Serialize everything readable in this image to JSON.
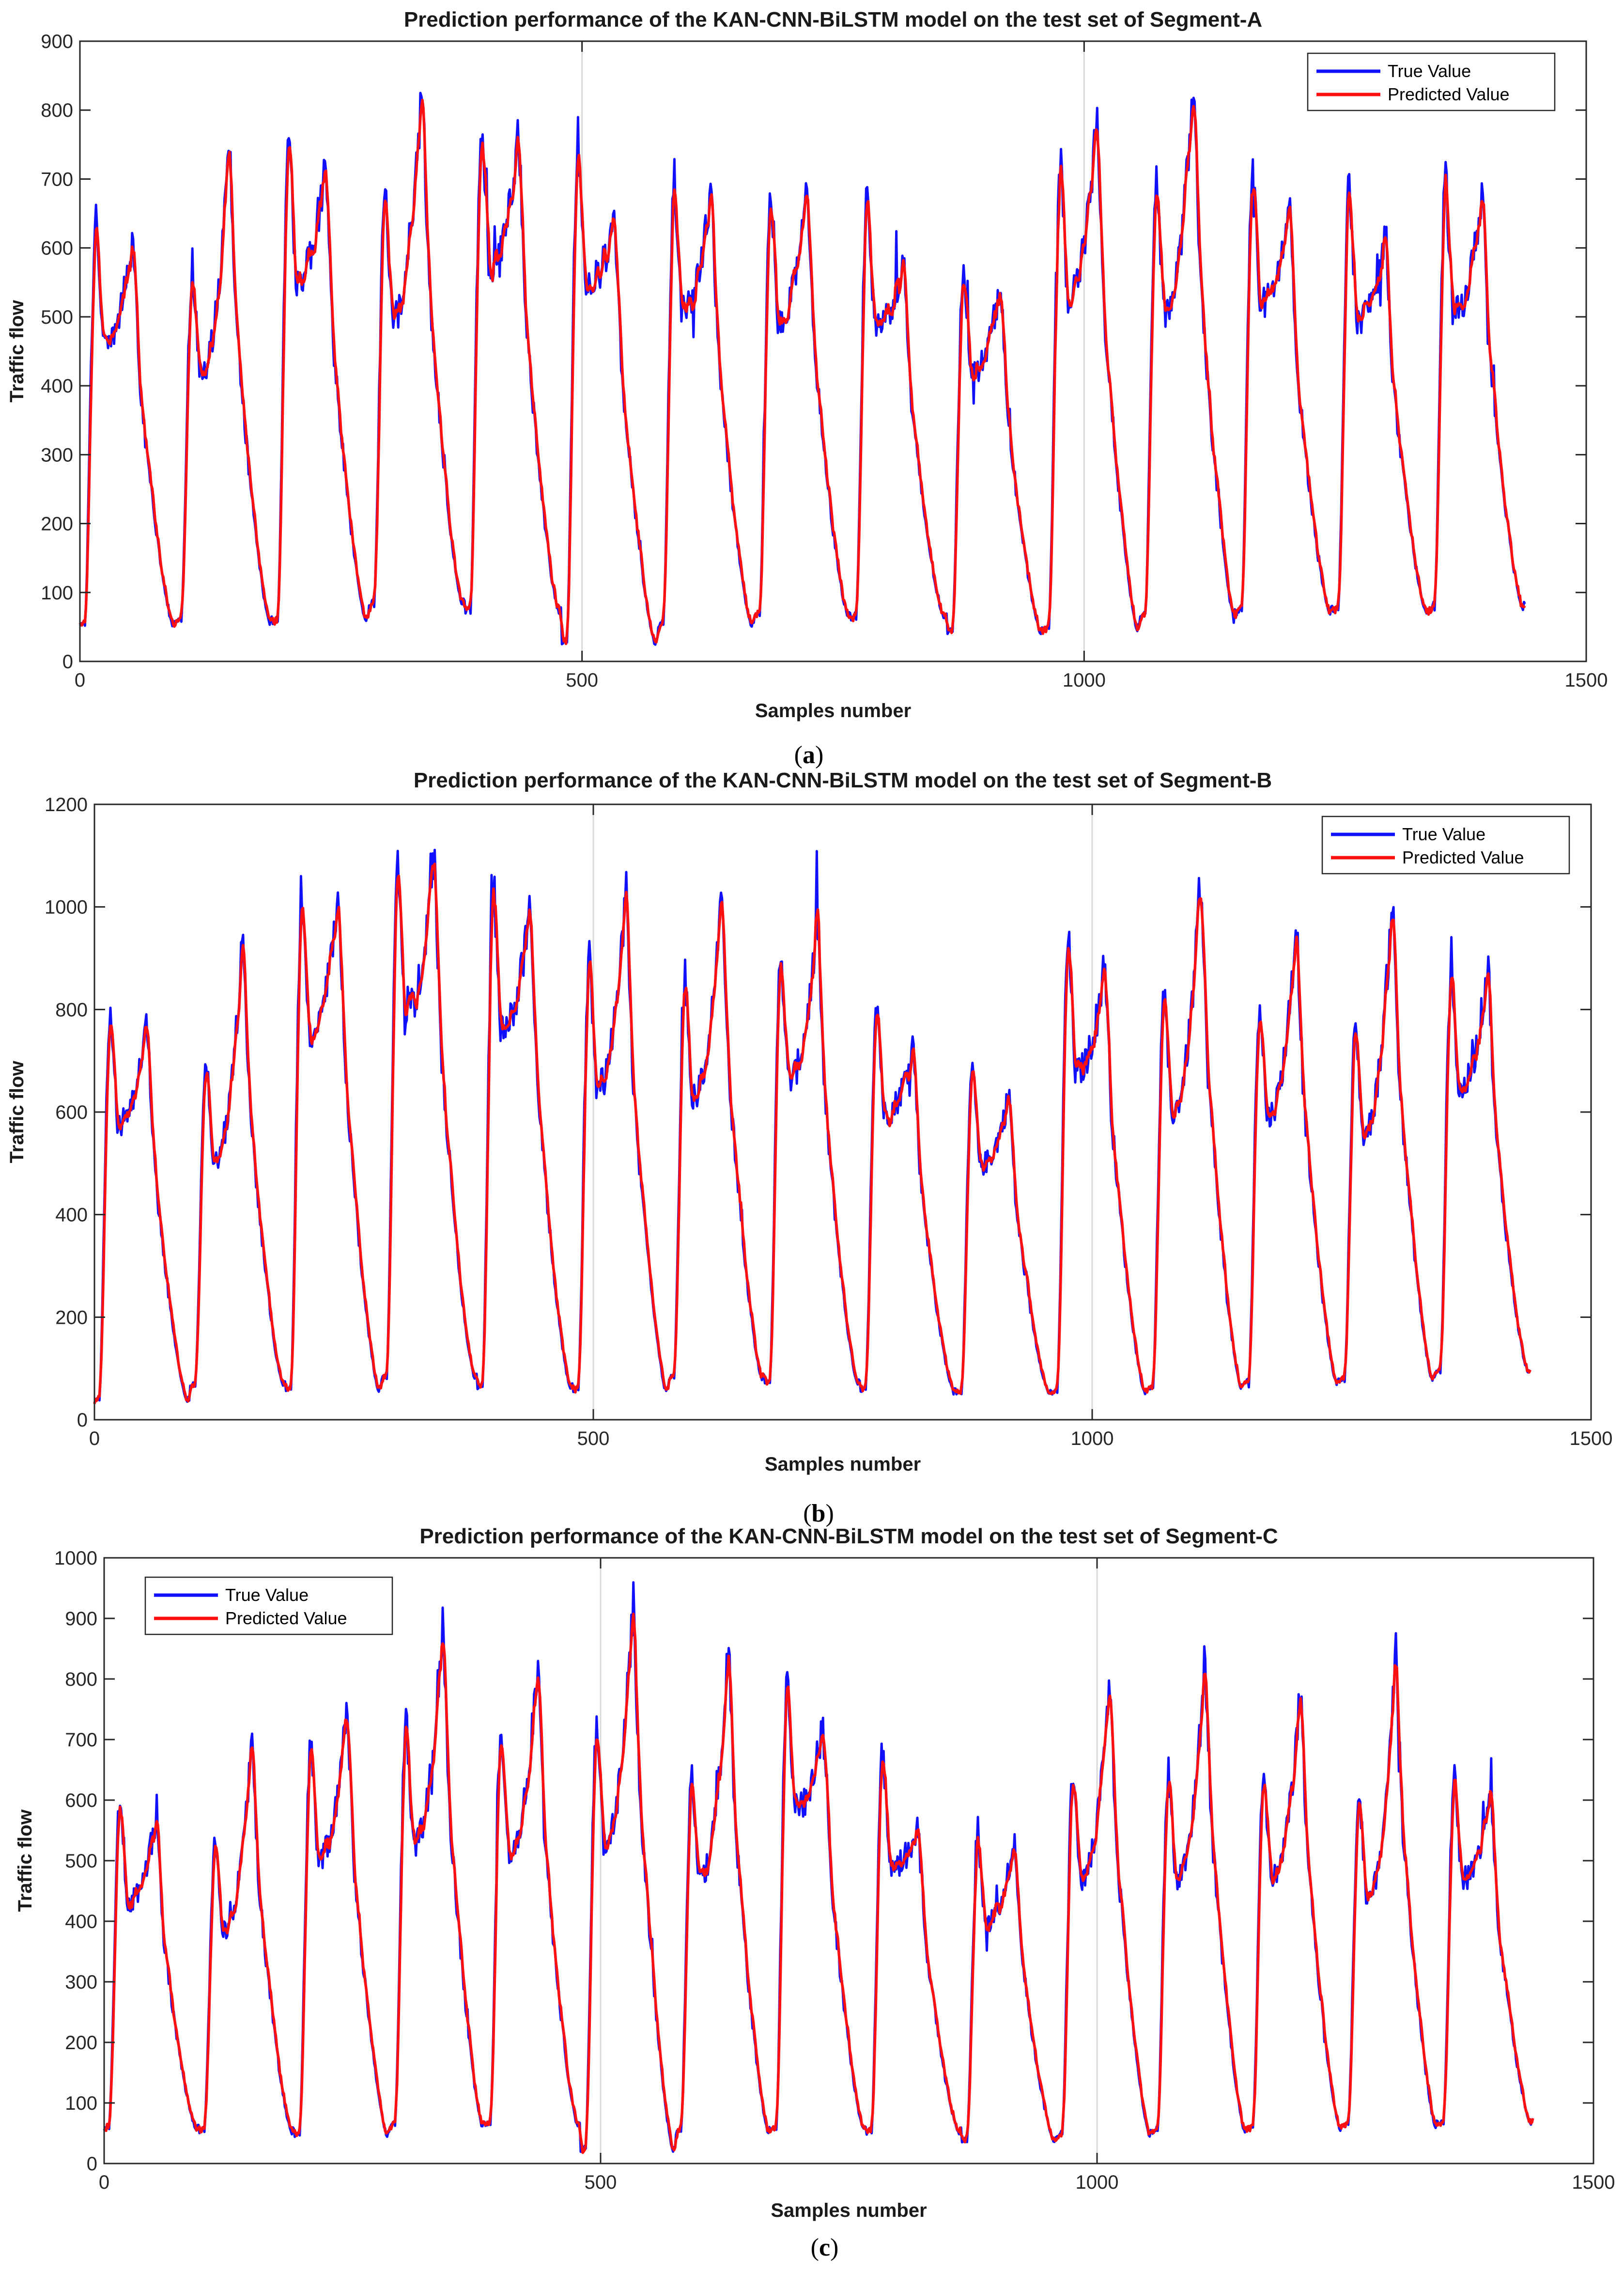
{
  "colors": {
    "true_value": "#1010ff",
    "predicted_value": "#ff1010",
    "grid": "#d9d9d9",
    "axes": "#262626"
  },
  "chart_data": [
    {
      "type": "line",
      "panel": "(a)",
      "caption_letter": "a",
      "title": "Prediction performance of the KAN-CNN-BiLSTM model on the test set of Segment-A",
      "xlabel": "Samples number",
      "ylabel": "Traffic flow",
      "xlim": [
        0,
        1500
      ],
      "ylim": [
        0,
        900
      ],
      "xticks": [
        "0",
        "500",
        "1000",
        "1500"
      ],
      "yticks": [
        "0",
        "100",
        "200",
        "300",
        "400",
        "500",
        "600",
        "700",
        "800",
        "900"
      ],
      "grid_x_at": [
        500,
        1000
      ],
      "legend_position": "top-right",
      "samples": 1440,
      "daily_period": 96,
      "series": [
        {
          "name": "True Value",
          "color": "#1010ff"
        },
        {
          "name": "Predicted Value",
          "color": "#ff1010"
        }
      ],
      "daily_peaks": [
        [
          640,
          620,
          50
        ],
        [
          575,
          760,
          55
        ],
        [
          770,
          730,
          55
        ],
        [
          690,
          845,
          80
        ],
        [
          785,
          780,
          70
        ],
        [
          760,
          640,
          25
        ],
        [
          705,
          690,
          50
        ],
        [
          690,
          690,
          65
        ],
        [
          680,
          580,
          60
        ],
        [
          580,
          555,
          40
        ],
        [
          735,
          790,
          45
        ],
        [
          700,
          850,
          65
        ],
        [
          720,
          660,
          70
        ],
        [
          690,
          620,
          70
        ],
        [
          700,
          690,
          75
        ]
      ]
    },
    {
      "type": "line",
      "panel": "(b)",
      "caption_letter": "b",
      "title": "Prediction performance of the KAN-CNN-BiLSTM model on the test set of Segment-B",
      "xlabel": "Samples number",
      "ylabel": "Traffic flow",
      "xlim": [
        0,
        1500
      ],
      "ylim": [
        0,
        1200
      ],
      "xticks": [
        "0",
        "500",
        "1000",
        "1500"
      ],
      "yticks": [
        "0",
        "200",
        "400",
        "600",
        "800",
        "1000",
        "1200"
      ],
      "grid_x_at": [
        500,
        1000
      ],
      "legend_position": "top-right",
      "samples": 1440,
      "daily_period": 96,
      "series": [
        {
          "name": "True Value",
          "color": "#1010ff"
        },
        {
          "name": "Predicted Value",
          "color": "#ff1010"
        }
      ],
      "daily_peaks": [
        [
          800,
          780,
          35
        ],
        [
          700,
          950,
          65
        ],
        [
          1040,
          1030,
          55
        ],
        [
          1100,
          1100,
          80
        ],
        [
          1050,
          1020,
          60
        ],
        [
          910,
          1040,
          55
        ],
        [
          870,
          1040,
          80
        ],
        [
          920,
          980,
          70
        ],
        [
          830,
          740,
          55
        ],
        [
          690,
          640,
          50
        ],
        [
          940,
          900,
          50
        ],
        [
          830,
          1060,
          60
        ],
        [
          820,
          980,
          70
        ],
        [
          770,
          1030,
          75
        ],
        [
          890,
          900,
          90
        ]
      ]
    },
    {
      "type": "line",
      "panel": "(c)",
      "caption_letter": "c",
      "title": "Prediction performance of the KAN-CNN-BiLSTM model on the test set of Segment-C",
      "xlabel": "Samples number",
      "ylabel": "Traffic flow",
      "xlim": [
        0,
        1500
      ],
      "ylim": [
        0,
        1000
      ],
      "xticks": [
        "0",
        "500",
        "1000",
        "1500"
      ],
      "yticks": [
        "0",
        "100",
        "200",
        "300",
        "400",
        "500",
        "600",
        "700",
        "800",
        "900",
        "1000"
      ],
      "grid_x_at": [
        500,
        1000
      ],
      "legend_position": "top-left",
      "samples": 1440,
      "daily_period": 96,
      "series": [
        {
          "name": "True Value",
          "color": "#1010ff"
        },
        {
          "name": "Predicted Value",
          "color": "#ff1010"
        }
      ],
      "daily_peaks": [
        [
          600,
          580,
          55
        ],
        [
          530,
          710,
          50
        ],
        [
          700,
          760,
          45
        ],
        [
          730,
          900,
          60
        ],
        [
          720,
          830,
          60
        ],
        [
          730,
          930,
          20
        ],
        [
          650,
          860,
          50
        ],
        [
          810,
          740,
          55
        ],
        [
          680,
          560,
          50
        ],
        [
          550,
          540,
          35
        ],
        [
          650,
          800,
          45
        ],
        [
          650,
          840,
          50
        ],
        [
          650,
          790,
          55
        ],
        [
          600,
          860,
          60
        ],
        [
          650,
          620,
          65
        ]
      ]
    }
  ]
}
